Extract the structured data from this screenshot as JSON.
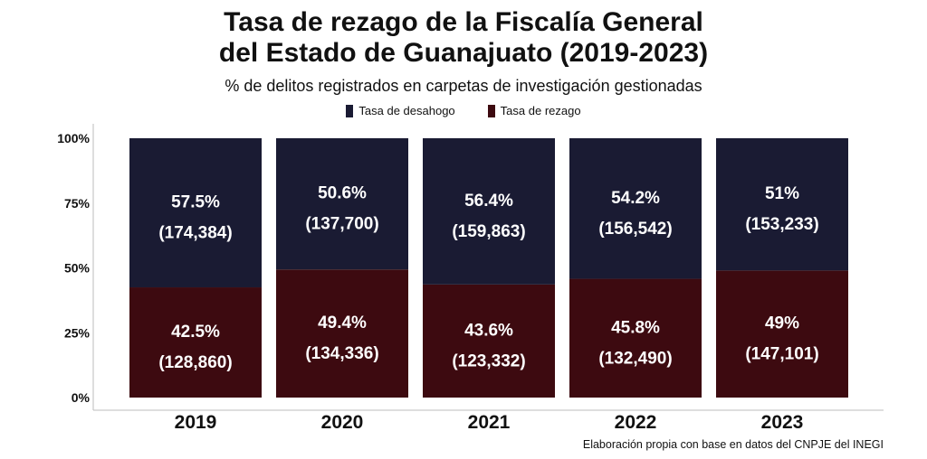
{
  "chart_data": {
    "type": "bar",
    "stacked": true,
    "title_line1": "Tasa de rezago de la Fiscalía General",
    "title_line2": "del Estado de Guanajuato (2019-2023)",
    "subtitle": "% de delitos registrados en carpetas de investigación gestionadas",
    "categories": [
      "2019",
      "2020",
      "2021",
      "2022",
      "2023"
    ],
    "y_ticks": [
      "0%",
      "25%",
      "50%",
      "75%",
      "100%"
    ],
    "ylim": [
      0,
      100
    ],
    "series": [
      {
        "name": "Tasa de rezago",
        "color": "#3d0a10",
        "values": [
          42.5,
          49.4,
          43.6,
          45.8,
          49
        ],
        "pct_labels": [
          "42.5%",
          "49.4%",
          "43.6%",
          "45.8%",
          "49%"
        ],
        "count_labels": [
          "(128,860)",
          "(134,336)",
          "(123,332)",
          "(132,490)",
          "(147,101)"
        ]
      },
      {
        "name": "Tasa de desahogo",
        "color": "#1a1b33",
        "values": [
          57.5,
          50.6,
          56.4,
          54.2,
          51
        ],
        "pct_labels": [
          "57.5%",
          "50.6%",
          "56.4%",
          "54.2%",
          "51%"
        ],
        "count_labels": [
          "(174,384)",
          "(137,700)",
          "(159,863)",
          "(156,542)",
          "(153,233)"
        ]
      }
    ],
    "legend": [
      "Tasa de desahogo",
      "Tasa de rezago"
    ],
    "legend_colors": [
      "#1a1b33",
      "#3d0a10"
    ],
    "note": "Elaboración propia con base en datos del CNPJE del INEGI"
  }
}
